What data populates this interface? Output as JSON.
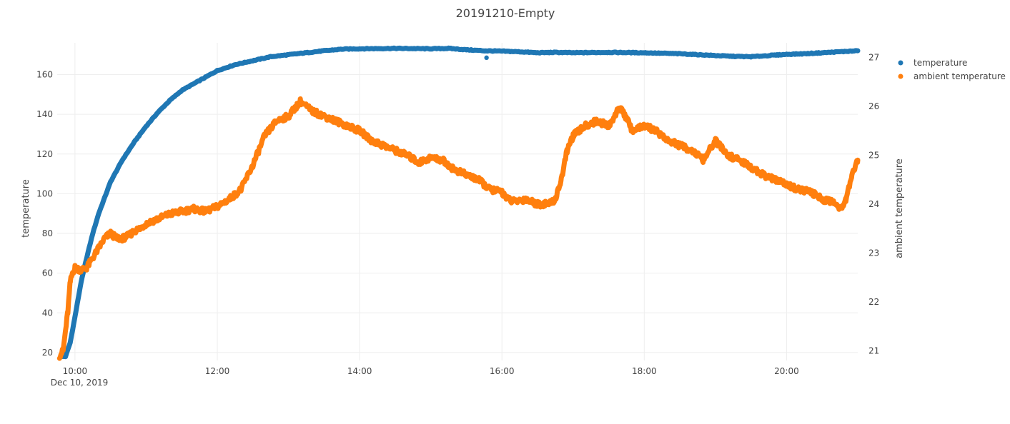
{
  "chart_data": {
    "type": "scatter",
    "title": "20191210-Empty",
    "x_start_label": "Dec 10, 2019",
    "x_range": [
      "09:45",
      "21:00"
    ],
    "x_ticks": [
      "10:00",
      "12:00",
      "14:00",
      "16:00",
      "18:00",
      "20:00"
    ],
    "y_left": {
      "label": "temperature",
      "range": [
        16,
        176
      ],
      "ticks": [
        20,
        40,
        60,
        80,
        100,
        120,
        140,
        160
      ]
    },
    "y_right": {
      "label": "ambient temperature",
      "range": [
        20.8,
        27.3
      ],
      "ticks": [
        21,
        22,
        23,
        24,
        25,
        26,
        27
      ]
    },
    "grid": true,
    "legend_position": "top-right",
    "series": [
      {
        "name": "temperature",
        "axis": "left",
        "color": "#1f77b4",
        "points": [
          [
            "09:48",
            18
          ],
          [
            "09:52",
            18
          ],
          [
            "09:56",
            25
          ],
          [
            "10:00",
            38
          ],
          [
            "10:05",
            55
          ],
          [
            "10:10",
            68
          ],
          [
            "10:15",
            80
          ],
          [
            "10:20",
            90
          ],
          [
            "10:25",
            98
          ],
          [
            "10:30",
            106
          ],
          [
            "10:40",
            117
          ],
          [
            "10:50",
            126
          ],
          [
            "11:00",
            134
          ],
          [
            "11:10",
            141
          ],
          [
            "11:20",
            147
          ],
          [
            "11:30",
            152
          ],
          [
            "11:45",
            157
          ],
          [
            "12:00",
            162
          ],
          [
            "12:15",
            165
          ],
          [
            "12:30",
            167
          ],
          [
            "12:45",
            169
          ],
          [
            "13:00",
            170
          ],
          [
            "13:15",
            171
          ],
          [
            "13:30",
            172
          ],
          [
            "13:45",
            172.8
          ],
          [
            "14:00",
            173
          ],
          [
            "14:30",
            173.2
          ],
          [
            "15:00",
            173
          ],
          [
            "15:15",
            173.2
          ],
          [
            "15:30",
            172.5
          ],
          [
            "15:45",
            172
          ],
          [
            "16:00",
            171.8
          ],
          [
            "16:15",
            171.5
          ],
          [
            "16:30",
            171
          ],
          [
            "16:45",
            171.2
          ],
          [
            "17:00",
            171
          ],
          [
            "17:30",
            171.2
          ],
          [
            "18:00",
            171
          ],
          [
            "18:30",
            170.5
          ],
          [
            "19:00",
            169.6
          ],
          [
            "19:15",
            169.2
          ],
          [
            "19:30",
            169
          ],
          [
            "19:45",
            169.6
          ],
          [
            "20:00",
            170.2
          ],
          [
            "20:15",
            170.5
          ],
          [
            "20:30",
            171
          ],
          [
            "20:45",
            171.5
          ],
          [
            "21:00",
            172
          ]
        ],
        "outliers": [
          [
            "15:47",
            168.5
          ]
        ]
      },
      {
        "name": "ambient temperature",
        "axis": "right",
        "color": "#ff7f0e",
        "points": [
          [
            "09:47",
            20.9
          ],
          [
            "09:50",
            21.0
          ],
          [
            "09:52",
            21.4
          ],
          [
            "09:54",
            21.8
          ],
          [
            "09:56",
            22.4
          ],
          [
            "09:58",
            22.6
          ],
          [
            "10:00",
            22.7
          ],
          [
            "10:05",
            22.65
          ],
          [
            "10:10",
            22.7
          ],
          [
            "10:15",
            22.9
          ],
          [
            "10:20",
            23.1
          ],
          [
            "10:25",
            23.3
          ],
          [
            "10:30",
            23.4
          ],
          [
            "10:35",
            23.3
          ],
          [
            "10:40",
            23.3
          ],
          [
            "10:45",
            23.35
          ],
          [
            "10:50",
            23.45
          ],
          [
            "10:55",
            23.5
          ],
          [
            "11:00",
            23.6
          ],
          [
            "11:10",
            23.7
          ],
          [
            "11:20",
            23.8
          ],
          [
            "11:30",
            23.85
          ],
          [
            "11:40",
            23.9
          ],
          [
            "11:50",
            23.85
          ],
          [
            "12:00",
            23.95
          ],
          [
            "12:10",
            24.1
          ],
          [
            "12:20",
            24.3
          ],
          [
            "12:30",
            24.8
          ],
          [
            "12:40",
            25.4
          ],
          [
            "12:50",
            25.7
          ],
          [
            "13:00",
            25.8
          ],
          [
            "13:10",
            26.1
          ],
          [
            "13:20",
            25.9
          ],
          [
            "13:30",
            25.8
          ],
          [
            "13:40",
            25.7
          ],
          [
            "13:50",
            25.6
          ],
          [
            "14:00",
            25.5
          ],
          [
            "14:10",
            25.3
          ],
          [
            "14:20",
            25.2
          ],
          [
            "14:30",
            25.1
          ],
          [
            "14:40",
            25.0
          ],
          [
            "14:50",
            24.85
          ],
          [
            "15:00",
            24.95
          ],
          [
            "15:10",
            24.9
          ],
          [
            "15:20",
            24.7
          ],
          [
            "15:30",
            24.6
          ],
          [
            "15:40",
            24.5
          ],
          [
            "15:50",
            24.3
          ],
          [
            "16:00",
            24.25
          ],
          [
            "16:05",
            24.1
          ],
          [
            "16:10",
            24.05
          ],
          [
            "16:20",
            24.1
          ],
          [
            "16:30",
            24.0
          ],
          [
            "16:40",
            24.0
          ],
          [
            "16:45",
            24.1
          ],
          [
            "16:50",
            24.5
          ],
          [
            "16:55",
            25.1
          ],
          [
            "17:00",
            25.4
          ],
          [
            "17:10",
            25.6
          ],
          [
            "17:20",
            25.7
          ],
          [
            "17:30",
            25.6
          ],
          [
            "17:40",
            26.0
          ],
          [
            "17:50",
            25.5
          ],
          [
            "18:00",
            25.6
          ],
          [
            "18:10",
            25.5
          ],
          [
            "18:20",
            25.3
          ],
          [
            "18:30",
            25.2
          ],
          [
            "18:40",
            25.1
          ],
          [
            "18:50",
            24.9
          ],
          [
            "19:00",
            25.3
          ],
          [
            "19:10",
            25.0
          ],
          [
            "19:20",
            24.9
          ],
          [
            "19:30",
            24.75
          ],
          [
            "19:40",
            24.6
          ],
          [
            "19:50",
            24.5
          ],
          [
            "20:00",
            24.4
          ],
          [
            "20:10",
            24.3
          ],
          [
            "20:20",
            24.25
          ],
          [
            "20:30",
            24.1
          ],
          [
            "20:40",
            24.05
          ],
          [
            "20:45",
            23.9
          ],
          [
            "20:50",
            24.1
          ],
          [
            "20:55",
            24.6
          ],
          [
            "21:00",
            24.9
          ]
        ],
        "outliers": []
      }
    ]
  },
  "legend": {
    "items": [
      {
        "label": "temperature",
        "color": "#1f77b4"
      },
      {
        "label": "ambient temperature",
        "color": "#ff7f0e"
      }
    ]
  }
}
